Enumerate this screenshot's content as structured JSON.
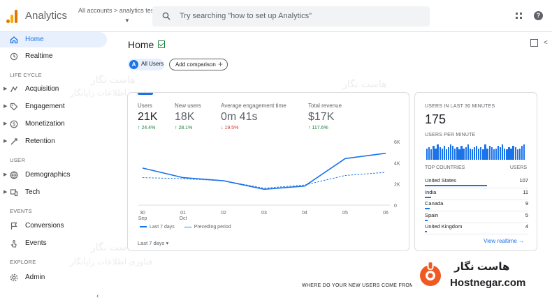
{
  "header": {
    "app_title": "Analytics",
    "account_path": "All accounts > analytics test",
    "search_placeholder": "Try searching \"how to set up Analytics\""
  },
  "sidebar": {
    "items_top": [
      {
        "label": "Home",
        "icon": "home-icon",
        "active": true
      },
      {
        "label": "Realtime",
        "icon": "clock-icon"
      }
    ],
    "sections": {
      "lifecycle": "LIFE CYCLE",
      "user": "USER",
      "events": "EVENTS",
      "explore": "EXPLORE"
    },
    "lifecycle_items": [
      {
        "label": "Acquisition",
        "icon": "acquisition-icon"
      },
      {
        "label": "Engagement",
        "icon": "tag-icon"
      },
      {
        "label": "Monetization",
        "icon": "dollar-icon"
      },
      {
        "label": "Retention",
        "icon": "retention-icon"
      }
    ],
    "user_items": [
      {
        "label": "Demographics",
        "icon": "globe-icon"
      },
      {
        "label": "Tech",
        "icon": "devices-icon"
      }
    ],
    "event_items": [
      {
        "label": "Conversions",
        "icon": "flag-icon"
      },
      {
        "label": "Events",
        "icon": "touch-icon"
      }
    ],
    "explore_items": [
      {
        "label": "Admin",
        "icon": "gear-icon"
      }
    ]
  },
  "main": {
    "title": "Home",
    "chip_all_users": "All Users",
    "chip_avatar": "A",
    "chip_add_comparison": "Add comparison"
  },
  "metrics": [
    {
      "label": "Users",
      "value": "21K",
      "change": "↑ 24.4%",
      "direction": "up"
    },
    {
      "label": "New users",
      "value": "18K",
      "change": "↑ 28.1%",
      "direction": "up"
    },
    {
      "label": "Average engagement time",
      "value": "0m 41s",
      "change": "↓ 19.5%",
      "direction": "down"
    },
    {
      "label": "Total revenue",
      "value": "$17K",
      "change": "↑ 117.6%",
      "direction": "up"
    }
  ],
  "chart_data": {
    "type": "line",
    "x": [
      "30 Sep",
      "01 Oct",
      "02",
      "03",
      "04",
      "05",
      "06"
    ],
    "x_ticks": [
      [
        "30",
        "Sep"
      ],
      [
        "01",
        "Oct"
      ],
      [
        "02",
        ""
      ],
      [
        "03",
        ""
      ],
      [
        "04",
        ""
      ],
      [
        "05",
        ""
      ],
      [
        "06",
        ""
      ]
    ],
    "y_ticks": [
      "6K",
      "4K",
      "2K",
      "0"
    ],
    "ylim": [
      0,
      6000
    ],
    "series": [
      {
        "name": "Last 7 days",
        "style": "solid",
        "values": [
          3500,
          2600,
          2300,
          1500,
          1800,
          4400,
          4900
        ]
      },
      {
        "name": "Preceding period",
        "style": "dashed",
        "values": [
          2600,
          2500,
          2300,
          1600,
          1900,
          2800,
          3100
        ]
      }
    ],
    "legend_position": "bottom-left"
  },
  "chart_footer": {
    "date_range": "Last 7 days ▾"
  },
  "realtime": {
    "heading": "USERS IN LAST 30 MINUTES",
    "value": "175",
    "per_minute_heading": "USERS PER MINUTE",
    "per_minute_values": [
      9,
      10,
      8,
      11,
      9,
      12,
      10,
      9,
      11,
      8,
      10,
      12,
      11,
      9,
      10,
      8,
      11,
      9,
      10,
      12,
      9,
      8,
      10,
      11,
      9,
      10,
      8,
      12,
      9,
      11,
      10,
      8,
      9,
      11,
      10,
      12,
      9,
      8,
      10,
      9,
      11,
      10,
      8,
      9,
      11,
      12
    ],
    "col_country": "TOP COUNTRIES",
    "col_users": "USERS",
    "countries": [
      {
        "name": "United States",
        "users": "107",
        "share": 0.6
      },
      {
        "name": "India",
        "users": "11",
        "share": 0.06
      },
      {
        "name": "Canada",
        "users": "9",
        "share": 0.05
      },
      {
        "name": "Spain",
        "users": "5",
        "share": 0.03
      },
      {
        "name": "United Kingdom",
        "users": "4",
        "share": 0.02
      }
    ],
    "link": "View realtime →"
  },
  "bottom_question": "WHERE DO YOUR NEW USERS COME FROM?",
  "watermark": {
    "fa": "هاست نگار",
    "en": "Hostnegar.com",
    "faint_title": "هاست نگار",
    "faint_sub": "فناوری اطلاعات رایانگار",
    "brand_color": "#f05a22"
  },
  "colors": {
    "accent": "#1a73e8",
    "up": "#188038",
    "down": "#d93025"
  }
}
